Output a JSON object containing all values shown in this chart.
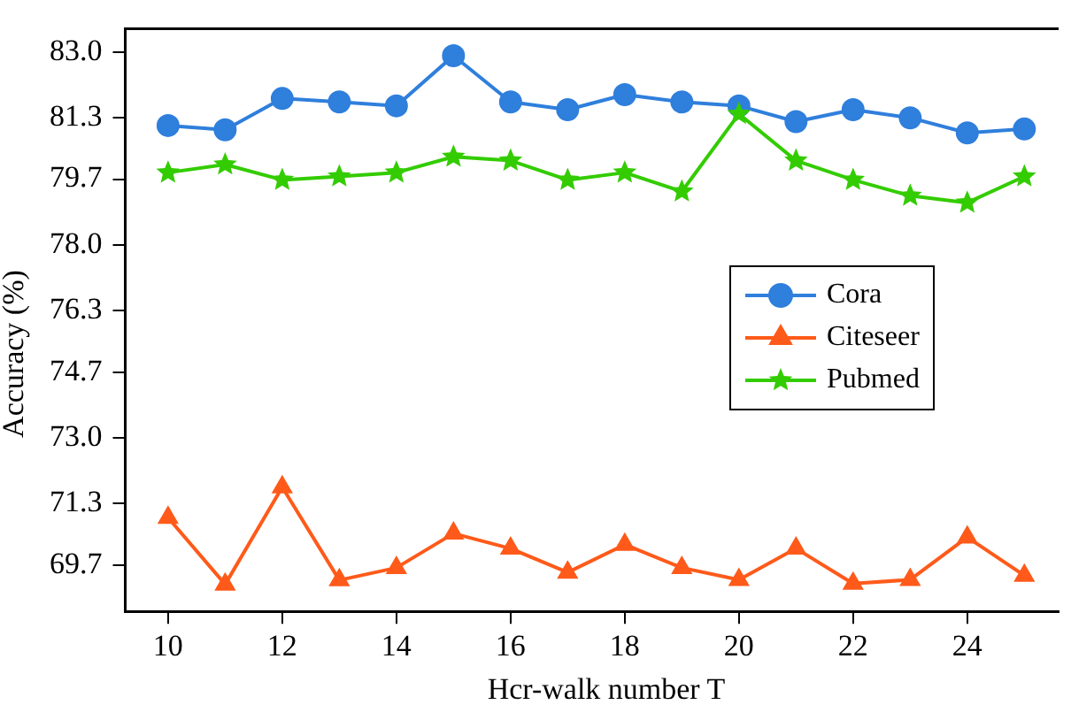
{
  "chart_data": {
    "type": "line",
    "xlabel": "Hcr-walk number T",
    "ylabel": "Accuracy (%)",
    "x": [
      10,
      11,
      12,
      13,
      14,
      15,
      16,
      17,
      18,
      19,
      20,
      21,
      22,
      23,
      24,
      25
    ],
    "series": [
      {
        "name": "Cora",
        "color": "#2f7fdc",
        "marker": "circle",
        "values": [
          81.09,
          80.98,
          81.79,
          81.7,
          81.6,
          82.9,
          81.7,
          81.5,
          81.89,
          81.7,
          81.6,
          81.19,
          81.5,
          81.29,
          80.9,
          81.0
        ]
      },
      {
        "name": "Citeseer",
        "color": "#ff5a1a",
        "marker": "triangle",
        "values": [
          70.93,
          69.2,
          71.72,
          69.31,
          69.63,
          70.52,
          70.13,
          69.51,
          70.23,
          69.63,
          69.32,
          70.13,
          69.22,
          69.32,
          70.42,
          69.43
        ]
      },
      {
        "name": "Pubmed",
        "color": "#33cc00",
        "marker": "star",
        "values": [
          79.87,
          80.08,
          79.68,
          79.77,
          79.87,
          80.28,
          80.18,
          79.68,
          79.87,
          79.38,
          81.39,
          80.18,
          79.68,
          79.27,
          79.09,
          79.77
        ]
      }
    ],
    "xlim": [
      9.25,
      25.6
    ],
    "xticks": [
      10,
      12,
      14,
      16,
      18,
      20,
      22,
      24
    ],
    "ylim": [
      68.5,
      83.6
    ],
    "yticks": [
      {
        "value": 69.7,
        "label": "69.7"
      },
      {
        "value": 71.3,
        "label": "71.3"
      },
      {
        "value": 73.0,
        "label": "73.0"
      },
      {
        "value": 74.7,
        "label": "74.7"
      },
      {
        "value": 76.3,
        "label": "76.3"
      },
      {
        "value": 78.0,
        "label": "78.0"
      },
      {
        "value": 79.7,
        "label": "79.7"
      },
      {
        "value": 81.3,
        "label": "81.3"
      },
      {
        "value": 83.0,
        "label": "83.0"
      }
    ],
    "grid": false,
    "legend": "right",
    "line_style": "solid"
  }
}
